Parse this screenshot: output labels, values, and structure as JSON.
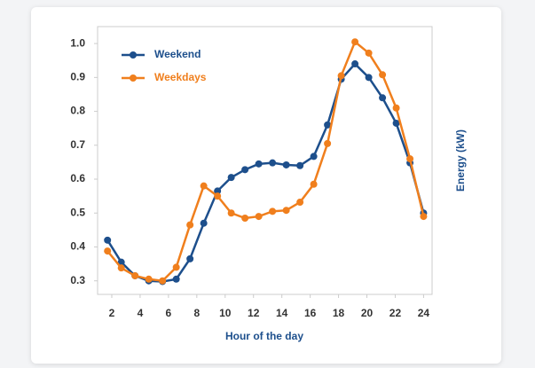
{
  "chart_data": {
    "type": "line",
    "x": [
      1.7,
      2.67,
      3.64,
      4.61,
      5.58,
      6.55,
      7.52,
      8.49,
      9.46,
      10.43,
      11.4,
      12.37,
      13.34,
      14.31,
      15.28,
      16.25,
      17.22,
      18.19,
      19.16,
      20.13,
      21.1,
      22.07,
      23.04,
      24.0
    ],
    "series": [
      {
        "name": "Weekend",
        "color": "#1d4f8c",
        "values": [
          0.42,
          0.355,
          0.315,
          0.3,
          0.298,
          0.305,
          0.365,
          0.47,
          0.565,
          0.605,
          0.628,
          0.645,
          0.648,
          0.642,
          0.64,
          0.667,
          0.76,
          0.895,
          0.94,
          0.9,
          0.84,
          0.765,
          0.648,
          0.5
        ]
      },
      {
        "name": "Weekdays",
        "color": "#f07f1d",
        "values": [
          0.388,
          0.338,
          0.315,
          0.305,
          0.3,
          0.34,
          0.465,
          0.58,
          0.55,
          0.5,
          0.485,
          0.49,
          0.505,
          0.508,
          0.532,
          0.585,
          0.705,
          0.905,
          1.005,
          0.972,
          0.908,
          0.81,
          0.66,
          0.49
        ]
      }
    ],
    "x_label": "Hour of the day",
    "y_label": "Energy (kW)",
    "xlim": [
      1,
      24.6
    ],
    "xticks": [
      2,
      4,
      6,
      8,
      10,
      12,
      14,
      16,
      18,
      20,
      22,
      24
    ],
    "ylim": [
      0.26,
      1.05
    ],
    "yticks": [
      0.3,
      0.4,
      0.5,
      0.6,
      0.7,
      0.8,
      0.9,
      {
        "value": 1,
        "label": "1.0"
      }
    ],
    "legend": "upper left"
  }
}
